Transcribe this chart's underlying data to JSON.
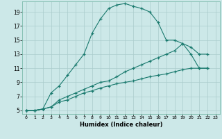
{
  "xlabel": "Humidex (Indice chaleur)",
  "bg_color": "#cce8e8",
  "grid_color": "#aacccc",
  "line_color": "#1a7a6e",
  "xlim": [
    -0.5,
    23.5
  ],
  "ylim": [
    4.5,
    20.5
  ],
  "yticks": [
    5,
    7,
    9,
    11,
    13,
    15,
    17,
    19
  ],
  "xticks": [
    0,
    1,
    2,
    3,
    4,
    5,
    6,
    7,
    8,
    9,
    10,
    11,
    12,
    13,
    14,
    15,
    16,
    17,
    18,
    19,
    20,
    21,
    22,
    23
  ],
  "curve1_x": [
    0,
    1,
    2,
    3,
    4,
    5,
    6,
    7,
    8,
    9,
    10,
    11,
    12,
    13,
    14,
    15,
    16,
    17,
    18,
    19,
    20,
    21,
    22
  ],
  "curve1_y": [
    5,
    5,
    5.2,
    7.5,
    8.5,
    10,
    11.5,
    13,
    16,
    18,
    19.5,
    20,
    20.2,
    19.8,
    19.5,
    19,
    17.5,
    15,
    15,
    14.5,
    13,
    11,
    11
  ],
  "curve2_x": [
    0,
    1,
    2,
    3,
    4,
    5,
    6,
    7,
    8,
    9,
    10,
    11,
    12,
    13,
    14,
    15,
    16,
    17,
    18,
    19,
    20,
    21,
    22
  ],
  "curve2_y": [
    5,
    5,
    5.2,
    5.5,
    6.2,
    6.5,
    7,
    7.5,
    7.8,
    8.2,
    8.5,
    8.8,
    9,
    9.2,
    9.5,
    9.8,
    10,
    10.2,
    10.5,
    10.8,
    11,
    11,
    11
  ],
  "curve3_x": [
    0,
    1,
    2,
    3,
    4,
    5,
    6,
    7,
    8,
    9,
    10,
    11,
    12,
    13,
    14,
    15,
    16,
    17,
    18,
    19,
    20,
    21,
    22
  ],
  "curve3_y": [
    5,
    5,
    5.2,
    5.5,
    6.5,
    7,
    7.5,
    8,
    8.5,
    9,
    9.2,
    9.8,
    10.5,
    11,
    11.5,
    12,
    12.5,
    13,
    13.5,
    14.5,
    14,
    13,
    13
  ]
}
